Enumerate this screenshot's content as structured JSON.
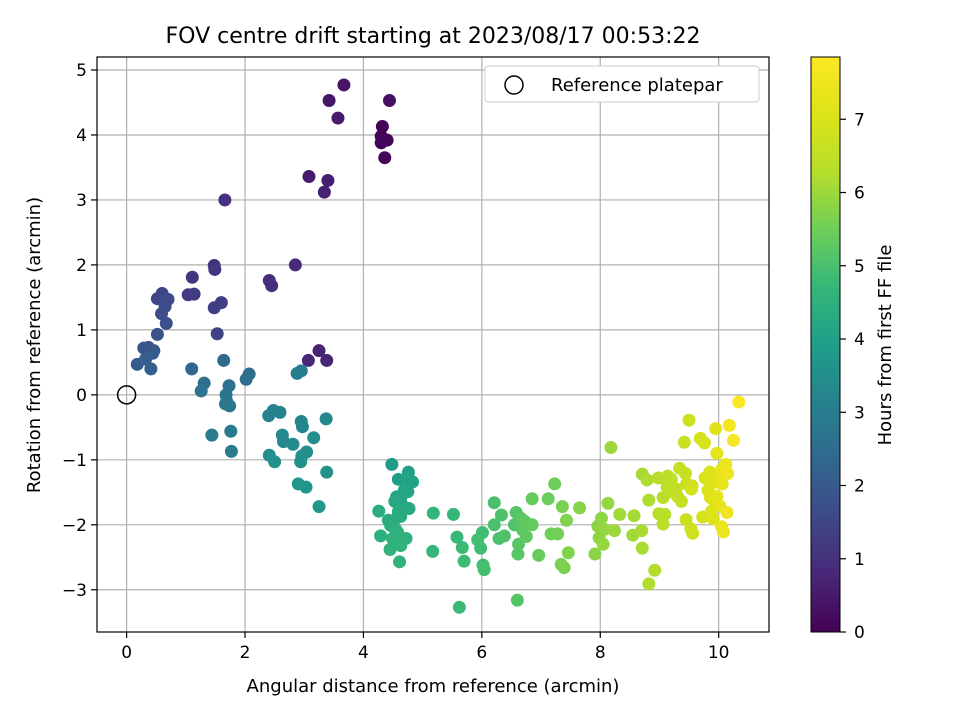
{
  "chart_data": {
    "type": "scatter",
    "title": "FOV centre drift starting at 2023/08/17 00:53:22",
    "xlabel": "Angular distance from reference (arcmin)",
    "ylabel": "Rotation from reference (arcmin)",
    "xlim": [
      -0.5,
      10.85
    ],
    "ylim": [
      -3.65,
      5.2
    ],
    "xticks": [
      "0",
      "2",
      "4",
      "6",
      "8",
      "10"
    ],
    "yticks": [
      "−3",
      "−2",
      "−1",
      "0",
      "1",
      "2",
      "3",
      "4",
      "5"
    ],
    "grid": true,
    "legend": {
      "placement": "top-right",
      "entries": [
        "Reference platepar"
      ]
    },
    "reference_point": {
      "x": 0,
      "y": 0
    },
    "colorbar": {
      "label": "Hours from first FF file",
      "colormap": "viridis",
      "range": [
        0,
        7.85
      ],
      "ticks": [
        "0",
        "1",
        "2",
        "3",
        "4",
        "5",
        "6",
        "7"
      ]
    },
    "points": [
      [
        4.32,
        4.13,
        0.05
      ],
      [
        4.3,
        3.98,
        0.05
      ],
      [
        4.4,
        3.92,
        0.07
      ],
      [
        4.3,
        3.88,
        0.08
      ],
      [
        4.36,
        3.65,
        0.1
      ],
      [
        4.44,
        4.53,
        0.3
      ],
      [
        3.67,
        4.77,
        0.4
      ],
      [
        3.42,
        4.53,
        0.45
      ],
      [
        3.57,
        4.26,
        0.5
      ],
      [
        3.08,
        3.36,
        0.55
      ],
      [
        3.4,
        3.3,
        0.6
      ],
      [
        3.34,
        3.12,
        0.65
      ],
      [
        3.25,
        0.68,
        0.7
      ],
      [
        3.38,
        0.53,
        0.75
      ],
      [
        3.07,
        0.53,
        0.8
      ],
      [
        2.85,
        2.0,
        0.85
      ],
      [
        2.41,
        1.76,
        0.9
      ],
      [
        2.45,
        1.68,
        0.95
      ],
      [
        1.66,
        3.0,
        1.0
      ],
      [
        1.48,
        1.99,
        1.05
      ],
      [
        1.49,
        1.93,
        1.1
      ],
      [
        1.11,
        1.81,
        1.15
      ],
      [
        1.04,
        1.54,
        1.2
      ],
      [
        1.14,
        1.55,
        1.25
      ],
      [
        1.48,
        1.34,
        1.3
      ],
      [
        1.6,
        1.42,
        1.3
      ],
      [
        1.53,
        0.94,
        1.4
      ],
      [
        0.52,
        1.48,
        1.45
      ],
      [
        0.6,
        1.56,
        1.5
      ],
      [
        0.62,
        1.45,
        1.55
      ],
      [
        0.7,
        1.47,
        1.6
      ],
      [
        0.65,
        1.36,
        1.6
      ],
      [
        0.59,
        1.25,
        1.7
      ],
      [
        0.67,
        1.1,
        1.75
      ],
      [
        0.52,
        0.93,
        1.8
      ],
      [
        0.29,
        0.72,
        1.85
      ],
      [
        0.37,
        0.73,
        1.9
      ],
      [
        0.46,
        0.68,
        1.95
      ],
      [
        0.44,
        0.64,
        2.0
      ],
      [
        0.18,
        0.47,
        2.05
      ],
      [
        0.32,
        0.55,
        2.1
      ],
      [
        0.41,
        0.4,
        2.15
      ],
      [
        1.1,
        0.4,
        2.3
      ],
      [
        1.64,
        0.53,
        2.4
      ],
      [
        2.07,
        0.32,
        2.5
      ],
      [
        2.02,
        0.24,
        2.55
      ],
      [
        1.73,
        0.14,
        2.6
      ],
      [
        1.31,
        0.18,
        2.6
      ],
      [
        1.26,
        0.06,
        2.65
      ],
      [
        1.68,
        0.0,
        2.7
      ],
      [
        1.69,
        -0.1,
        2.75
      ],
      [
        1.74,
        -0.17,
        2.8
      ],
      [
        1.67,
        -0.14,
        2.8
      ],
      [
        1.44,
        -0.62,
        2.9
      ],
      [
        1.76,
        -0.56,
        2.9
      ],
      [
        1.77,
        -0.87,
        2.95
      ],
      [
        2.88,
        0.33,
        3.0
      ],
      [
        2.95,
        0.37,
        3.0
      ],
      [
        2.4,
        -0.32,
        3.1
      ],
      [
        2.48,
        -0.24,
        3.1
      ],
      [
        2.59,
        -0.27,
        3.15
      ],
      [
        2.95,
        -0.41,
        3.2
      ],
      [
        2.97,
        -0.49,
        3.25
      ],
      [
        3.37,
        -0.37,
        3.3
      ],
      [
        2.63,
        -0.62,
        3.35
      ],
      [
        2.65,
        -0.72,
        3.35
      ],
      [
        2.81,
        -0.76,
        3.4
      ],
      [
        3.04,
        -0.88,
        3.45
      ],
      [
        3.16,
        -0.66,
        3.45
      ],
      [
        2.96,
        -0.94,
        3.5
      ],
      [
        2.41,
        -0.93,
        3.5
      ],
      [
        2.5,
        -1.03,
        3.55
      ],
      [
        2.94,
        -1.03,
        3.55
      ],
      [
        3.38,
        -1.19,
        3.6
      ],
      [
        2.9,
        -1.37,
        3.65
      ],
      [
        3.03,
        -1.42,
        3.7
      ],
      [
        3.25,
        -1.72,
        3.75
      ],
      [
        4.48,
        -1.07,
        3.9
      ],
      [
        4.59,
        -1.3,
        3.95
      ],
      [
        4.76,
        -1.19,
        4.0
      ],
      [
        4.74,
        -1.29,
        4.05
      ],
      [
        4.83,
        -1.34,
        4.05
      ],
      [
        4.56,
        -1.57,
        4.1
      ],
      [
        4.63,
        -1.6,
        4.1
      ],
      [
        4.69,
        -1.47,
        4.15
      ],
      [
        4.75,
        -1.49,
        4.15
      ],
      [
        4.53,
        -1.64,
        4.2
      ],
      [
        4.6,
        -1.68,
        4.2
      ],
      [
        4.68,
        -1.72,
        4.25
      ],
      [
        4.77,
        -1.75,
        4.25
      ],
      [
        4.59,
        -1.8,
        4.3
      ],
      [
        4.63,
        -1.87,
        4.3
      ],
      [
        4.52,
        -1.93,
        4.35
      ],
      [
        4.42,
        -1.93,
        4.35
      ],
      [
        4.26,
        -1.79,
        4.4
      ],
      [
        4.46,
        -2.01,
        4.4
      ],
      [
        4.55,
        -2.08,
        4.45
      ],
      [
        4.29,
        -2.17,
        4.45
      ],
      [
        4.58,
        -2.12,
        4.5
      ],
      [
        4.72,
        -2.21,
        4.5
      ],
      [
        4.49,
        -2.21,
        4.55
      ],
      [
        4.63,
        -2.32,
        4.55
      ],
      [
        4.45,
        -2.38,
        4.6
      ],
      [
        4.61,
        -2.57,
        4.6
      ],
      [
        5.18,
        -1.82,
        4.65
      ],
      [
        5.52,
        -1.84,
        4.7
      ],
      [
        5.17,
        -2.41,
        4.7
      ],
      [
        5.58,
        -2.19,
        4.75
      ],
      [
        5.67,
        -2.35,
        4.8
      ],
      [
        5.7,
        -2.56,
        4.8
      ],
      [
        5.62,
        -3.27,
        4.8
      ],
      [
        5.98,
        -2.36,
        4.85
      ],
      [
        6.01,
        -2.12,
        4.85
      ],
      [
        5.93,
        -2.23,
        4.9
      ],
      [
        6.02,
        -2.62,
        4.9
      ],
      [
        6.04,
        -2.69,
        4.95
      ],
      [
        6.21,
        -2.0,
        5.0
      ],
      [
        6.21,
        -1.66,
        5.0
      ],
      [
        6.29,
        -2.21,
        5.05
      ],
      [
        6.33,
        -1.85,
        5.05
      ],
      [
        6.38,
        -2.17,
        5.1
      ],
      [
        6.55,
        -2.0,
        5.1
      ],
      [
        6.58,
        -1.81,
        5.15
      ],
      [
        6.6,
        -3.16,
        5.15
      ],
      [
        6.62,
        -2.3,
        5.2
      ],
      [
        6.61,
        -2.45,
        5.2
      ],
      [
        6.66,
        -1.9,
        5.25
      ],
      [
        6.69,
        -2.08,
        5.25
      ],
      [
        6.75,
        -2.18,
        5.3
      ],
      [
        6.73,
        -1.95,
        5.3
      ],
      [
        6.85,
        -2.0,
        5.35
      ],
      [
        6.85,
        -1.6,
        5.35
      ],
      [
        6.96,
        -2.47,
        5.4
      ],
      [
        7.12,
        -1.6,
        5.45
      ],
      [
        7.17,
        -2.14,
        5.5
      ],
      [
        7.23,
        -1.37,
        5.5
      ],
      [
        7.28,
        -2.14,
        5.55
      ],
      [
        7.36,
        -1.72,
        5.6
      ],
      [
        7.34,
        -2.61,
        5.6
      ],
      [
        7.39,
        -2.66,
        5.65
      ],
      [
        7.46,
        -2.43,
        5.7
      ],
      [
        7.43,
        -1.93,
        5.7
      ],
      [
        7.65,
        -1.74,
        5.75
      ],
      [
        7.91,
        -2.45,
        5.8
      ],
      [
        7.96,
        -2.02,
        5.8
      ],
      [
        7.98,
        -2.2,
        5.85
      ],
      [
        8.02,
        -1.9,
        5.85
      ],
      [
        8.07,
        -2.07,
        5.9
      ],
      [
        8.13,
        -1.67,
        5.9
      ],
      [
        8.05,
        -2.3,
        5.95
      ],
      [
        8.18,
        -0.81,
        6.0
      ],
      [
        8.24,
        -2.09,
        6.0
      ],
      [
        8.33,
        -1.84,
        6.05
      ],
      [
        8.55,
        -2.16,
        6.05
      ],
      [
        8.57,
        -1.86,
        6.1
      ],
      [
        8.71,
        -1.22,
        6.1
      ],
      [
        8.7,
        -2.09,
        6.15
      ],
      [
        8.71,
        -2.36,
        6.15
      ],
      [
        8.79,
        -1.31,
        6.2
      ],
      [
        8.82,
        -1.62,
        6.2
      ],
      [
        8.82,
        -2.91,
        6.25
      ],
      [
        8.92,
        -2.7,
        6.25
      ],
      [
        8.99,
        -1.83,
        6.3
      ],
      [
        8.98,
        -1.28,
        6.3
      ],
      [
        9.06,
        -1.58,
        6.35
      ],
      [
        9.09,
        -1.84,
        6.35
      ],
      [
        9.14,
        -1.25,
        6.4
      ],
      [
        9.06,
        -1.99,
        6.4
      ],
      [
        9.2,
        -1.3,
        6.45
      ],
      [
        9.13,
        -1.42,
        6.45
      ],
      [
        9.23,
        -1.5,
        6.5
      ],
      [
        9.28,
        -1.45,
        6.5
      ],
      [
        9.31,
        -1.57,
        6.55
      ],
      [
        9.34,
        -1.13,
        6.6
      ],
      [
        9.37,
        -1.64,
        6.6
      ],
      [
        9.42,
        -0.73,
        6.65
      ],
      [
        9.44,
        -1.21,
        6.65
      ],
      [
        9.46,
        -1.37,
        6.7
      ],
      [
        9.45,
        -1.92,
        6.7
      ],
      [
        9.5,
        -0.39,
        6.75
      ],
      [
        9.53,
        -2.06,
        6.75
      ],
      [
        9.55,
        -1.4,
        6.8
      ],
      [
        9.56,
        -2.13,
        6.8
      ],
      [
        9.54,
        -1.45,
        6.85
      ],
      [
        9.69,
        -0.67,
        6.9
      ],
      [
        9.73,
        -1.88,
        6.9
      ],
      [
        9.76,
        -0.74,
        6.95
      ],
      [
        9.77,
        -1.28,
        6.95
      ],
      [
        9.82,
        -1.47,
        7.0
      ],
      [
        9.85,
        -1.19,
        7.0
      ],
      [
        9.86,
        -1.58,
        7.05
      ],
      [
        9.88,
        -1.79,
        7.05
      ],
      [
        9.91,
        -1.35,
        7.1
      ],
      [
        9.91,
        -1.91,
        7.1
      ],
      [
        9.93,
        -1.63,
        7.15
      ],
      [
        9.95,
        -0.52,
        7.15
      ],
      [
        9.97,
        -0.9,
        7.2
      ],
      [
        9.97,
        -1.56,
        7.2
      ],
      [
        10.02,
        -1.27,
        7.25
      ],
      [
        10.02,
        -1.71,
        7.25
      ],
      [
        10.06,
        -1.37,
        7.3
      ],
      [
        10.05,
        -1.15,
        7.35
      ],
      [
        10.05,
        -2.03,
        7.35
      ],
      [
        10.08,
        -2.11,
        7.4
      ],
      [
        10.12,
        -1.07,
        7.45
      ],
      [
        10.14,
        -1.81,
        7.5
      ],
      [
        10.15,
        -1.21,
        7.55
      ],
      [
        10.18,
        -0.47,
        7.6
      ],
      [
        10.25,
        -0.7,
        7.7
      ],
      [
        10.34,
        -0.11,
        7.8
      ]
    ]
  }
}
